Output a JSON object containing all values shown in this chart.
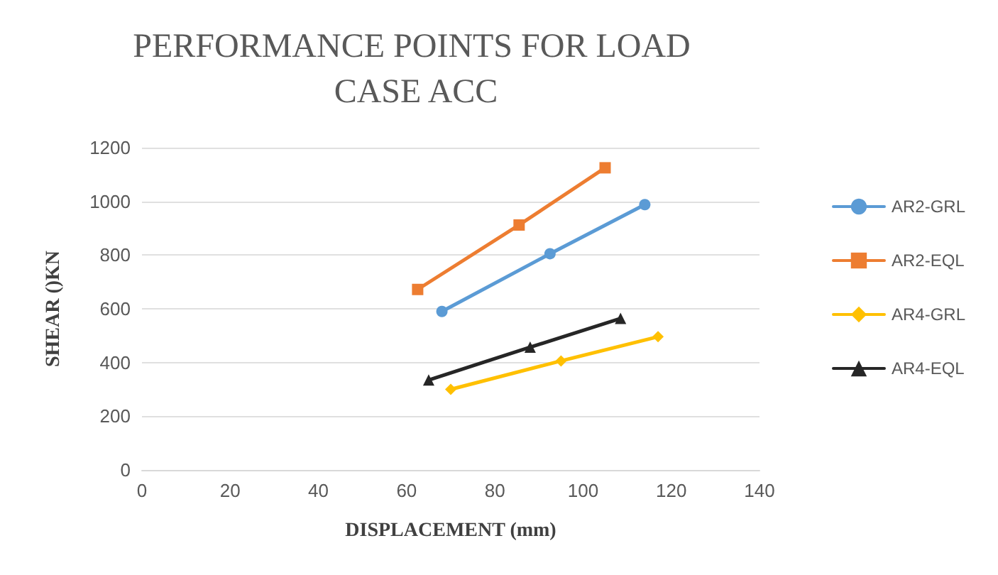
{
  "chart_data": {
    "type": "line",
    "title": "PERFORMANCE POINTS FOR LOAD CASE ACC",
    "xlabel": "DISPLACEMENT (mm)",
    "ylabel": "SHEAR ()KN",
    "xlim": [
      0,
      140
    ],
    "xticks": [
      0,
      20,
      40,
      60,
      80,
      100,
      120,
      140
    ],
    "ylim": [
      0,
      1200
    ],
    "yticks": [
      0,
      200,
      400,
      600,
      800,
      1000,
      1200
    ],
    "grid": "y",
    "legend": "right",
    "line_style": "solid",
    "series": [
      {
        "name": "AR2-GRL",
        "color": "#5b9bd5",
        "marker": "circle",
        "x": [
          68,
          92.5,
          114
        ],
        "values": [
          590,
          805,
          988
        ]
      },
      {
        "name": "AR2-EQL",
        "color": "#ed7d31",
        "marker": "square",
        "x": [
          62.5,
          85.5,
          105
        ],
        "values": [
          672,
          912,
          1125
        ]
      },
      {
        "name": "AR4-GRL",
        "color": "#ffc000",
        "marker": "diamond",
        "x": [
          70,
          95,
          117
        ],
        "values": [
          300,
          406,
          496
        ]
      },
      {
        "name": "AR4-EQL",
        "color": "#262626",
        "marker": "triangle",
        "x": [
          65,
          88,
          108.5
        ],
        "values": [
          335,
          457,
          564
        ]
      }
    ]
  }
}
